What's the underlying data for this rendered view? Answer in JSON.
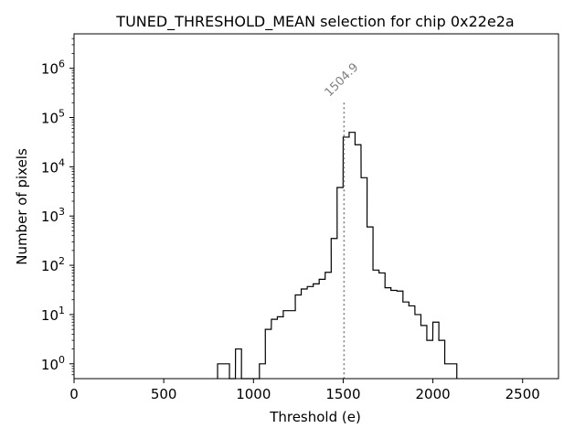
{
  "chart_data": {
    "type": "histogram",
    "title": "TUNED_THRESHOLD_MEAN selection for chip 0x22e2a",
    "xlabel": "Threshold (e)",
    "ylabel": "Number of pixels",
    "xlim": [
      0,
      2700
    ],
    "ylim": [
      0.5,
      5000000
    ],
    "yscale": "log",
    "x_ticks": [
      {
        "value": 0,
        "label": "0"
      },
      {
        "value": 500,
        "label": "500"
      },
      {
        "value": 1000,
        "label": "1000"
      },
      {
        "value": 1500,
        "label": "1500"
      },
      {
        "value": 2000,
        "label": "2000"
      },
      {
        "value": 2500,
        "label": "2500"
      }
    ],
    "y_ticks": [
      {
        "value": 1,
        "base": "10",
        "exp": "0"
      },
      {
        "value": 10,
        "base": "10",
        "exp": "1"
      },
      {
        "value": 100,
        "base": "10",
        "exp": "2"
      },
      {
        "value": 1000,
        "base": "10",
        "exp": "3"
      },
      {
        "value": 10000,
        "base": "10",
        "exp": "4"
      },
      {
        "value": 100000,
        "base": "10",
        "exp": "5"
      },
      {
        "value": 1000000,
        "base": "10",
        "exp": "6"
      }
    ],
    "bin_width": 33.33,
    "bins": [
      [
        800,
        1
      ],
      [
        833,
        1
      ],
      [
        866,
        0
      ],
      [
        900,
        2
      ],
      [
        933,
        0
      ],
      [
        966,
        0
      ],
      [
        1000,
        0
      ],
      [
        1033,
        1
      ],
      [
        1066,
        5
      ],
      [
        1100,
        8
      ],
      [
        1133,
        9
      ],
      [
        1166,
        12
      ],
      [
        1200,
        12
      ],
      [
        1233,
        25
      ],
      [
        1266,
        33
      ],
      [
        1300,
        37
      ],
      [
        1333,
        42
      ],
      [
        1366,
        52
      ],
      [
        1400,
        72
      ],
      [
        1433,
        350
      ],
      [
        1466,
        3800
      ],
      [
        1500,
        40000
      ],
      [
        1533,
        50000
      ],
      [
        1566,
        28000
      ],
      [
        1600,
        6000
      ],
      [
        1633,
        600
      ],
      [
        1666,
        80
      ],
      [
        1700,
        70
      ],
      [
        1733,
        35
      ],
      [
        1766,
        31
      ],
      [
        1800,
        30
      ],
      [
        1833,
        18
      ],
      [
        1866,
        15
      ],
      [
        1900,
        10
      ],
      [
        1933,
        6
      ],
      [
        1966,
        3
      ],
      [
        2000,
        7
      ],
      [
        2033,
        3
      ],
      [
        2066,
        1
      ],
      [
        2100,
        1
      ]
    ],
    "marker": {
      "value": 1504.9,
      "label": "1504.9",
      "color": "#808080",
      "style": "dotted",
      "top": 200000
    },
    "grid": false,
    "legend": "none"
  }
}
